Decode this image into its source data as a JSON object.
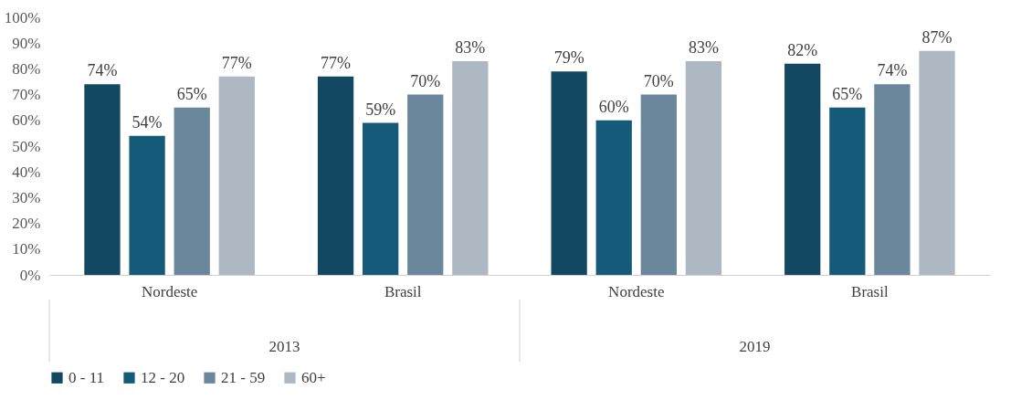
{
  "chart_data": {
    "type": "bar",
    "categories": [
      "Nordeste",
      "Brasil",
      "Nordeste",
      "Brasil"
    ],
    "series": [
      {
        "name": "0 - 11",
        "color": "#124862",
        "values": [
          74,
          77,
          79,
          82
        ],
        "value_labels": [
          "74%",
          "77%",
          "79%",
          "82%"
        ]
      },
      {
        "name": "12 - 20",
        "color": "#155a78",
        "values": [
          54,
          59,
          60,
          65
        ],
        "value_labels": [
          "54%",
          "59%",
          "60%",
          "65%"
        ]
      },
      {
        "name": "21 - 59",
        "color": "#6a879b",
        "values": [
          65,
          70,
          70,
          74
        ],
        "value_labels": [
          "65%",
          "70%",
          "70%",
          "74%"
        ]
      },
      {
        "name": "60+",
        "color": "#adb8c3",
        "values": [
          77,
          83,
          83,
          87
        ],
        "value_labels": [
          "77%",
          "83%",
          "83%",
          "87%"
        ]
      }
    ],
    "ylim": [
      0,
      100
    ],
    "yticks": [
      {
        "value": 0,
        "label": "0%"
      },
      {
        "value": 10,
        "label": "10%"
      },
      {
        "value": 20,
        "label": "20%"
      },
      {
        "value": 30,
        "label": "30%"
      },
      {
        "value": 40,
        "label": "40%"
      },
      {
        "value": 50,
        "label": "50%"
      },
      {
        "value": 60,
        "label": "60%"
      },
      {
        "value": 70,
        "label": "70%"
      },
      {
        "value": 80,
        "label": "80%"
      },
      {
        "value": 90,
        "label": "90%"
      },
      {
        "value": 100,
        "label": "100%"
      }
    ],
    "annotations": [
      "2013",
      "2019"
    ],
    "grid": false,
    "legend": "bottom"
  }
}
